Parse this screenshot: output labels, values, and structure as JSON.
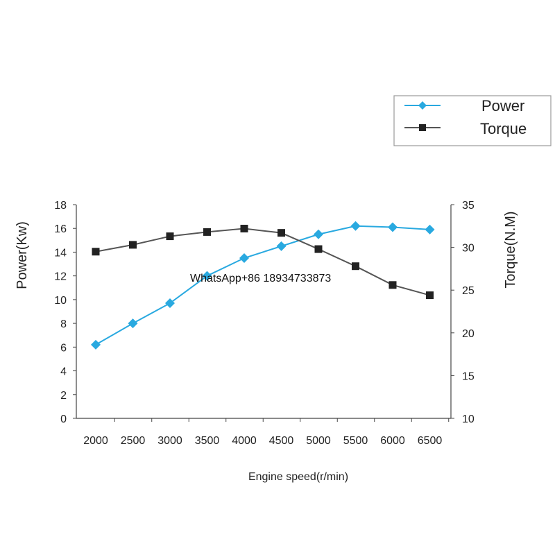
{
  "chart_data": {
    "type": "line",
    "xlabel": "Engine speed(r/min)",
    "ylabel_left": "Power(Kw)",
    "ylabel_right": "Torque(N.M)",
    "categories": [
      "2000",
      "2500",
      "3000",
      "3500",
      "4000",
      "4500",
      "5000",
      "5500",
      "6000",
      "6500"
    ],
    "ylim_left": [
      0,
      18
    ],
    "yticks_left": [
      "0",
      "2",
      "4",
      "6",
      "8",
      "10",
      "12",
      "14",
      "16",
      "18"
    ],
    "ylim_right": [
      10,
      35
    ],
    "yticks_right": [
      "10",
      "15",
      "20",
      "25",
      "30",
      "35"
    ],
    "grid": false,
    "legend_position": "top-right",
    "series": [
      {
        "name": "Power",
        "axis": "left",
        "color": "#29a9e0",
        "marker": "diamond",
        "values": [
          6.2,
          8.0,
          9.7,
          12.0,
          13.5,
          14.5,
          15.5,
          16.2,
          16.1,
          15.9
        ]
      },
      {
        "name": "Torque",
        "axis": "right",
        "color": "#555555",
        "marker": "square",
        "values": [
          29.5,
          30.3,
          31.3,
          31.8,
          32.2,
          31.7,
          29.8,
          27.8,
          25.6,
          24.4
        ]
      }
    ]
  },
  "watermark": "WhatsApp+86 18934733873"
}
